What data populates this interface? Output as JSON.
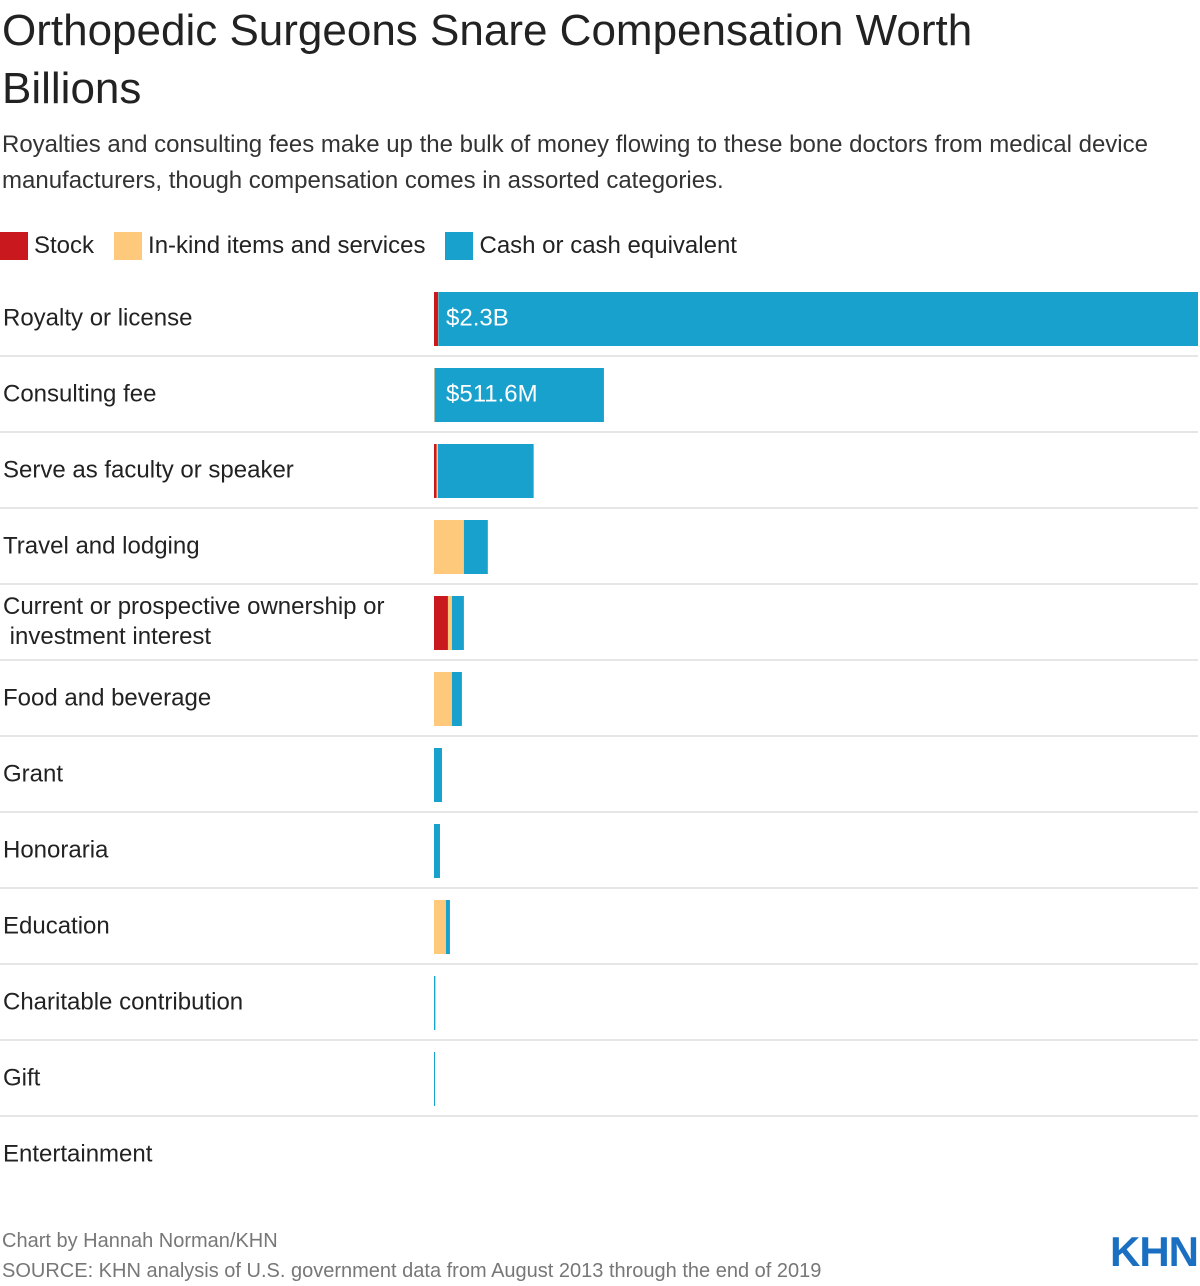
{
  "chart_data": {
    "type": "stacked_bar_horizontal",
    "title": "Orthopedic Surgeons Snare Compensation Worth Billions",
    "subtitle": "Royalties and consulting fees make up the bulk of money flowing to these bone doctors from medical device manufacturers, though compensation comes in assorted categories.",
    "categories": [
      "Royalty or license",
      "Consulting fee",
      "Serve as faculty or speaker",
      "Travel and lodging",
      "Current or prospective ownership or investment interest",
      "Food and beverage",
      "Grant",
      "Honoraria",
      "Education",
      "Charitable contribution",
      "Gift",
      "Entertainment"
    ],
    "series": [
      {
        "name": "Stock",
        "color": "#c9191e",
        "values": [
          12000000,
          0,
          8000000,
          0,
          42000000,
          0,
          0,
          0,
          0,
          0,
          0,
          0
        ]
      },
      {
        "name": "In-kind items and services",
        "color": "#fec97a",
        "values": [
          1000000,
          2000000,
          4000000,
          90000000,
          12000000,
          54000000,
          0,
          0,
          36000000,
          0,
          0,
          0
        ]
      },
      {
        "name": "Cash or cash equivalent",
        "color": "#18a1cd",
        "values": [
          2287000000,
          509600000,
          288000000,
          72000000,
          36000000,
          30000000,
          24000000,
          18000000,
          12000000,
          4000000,
          3000000,
          0
        ]
      }
    ],
    "totals": [
      2300000000,
      511600000,
      null,
      null,
      null,
      null,
      null,
      null,
      null,
      null,
      null,
      null
    ],
    "total_labels": [
      "$2.3B",
      "$511.6M",
      null,
      null,
      null,
      null,
      null,
      null,
      null,
      null,
      null,
      null
    ],
    "credit": "Chart by Hannah Norman/KHN",
    "source": "SOURCE: KHN analysis of U.S. government data from August 2013 through the end of 2019",
    "logo": "KHN"
  }
}
